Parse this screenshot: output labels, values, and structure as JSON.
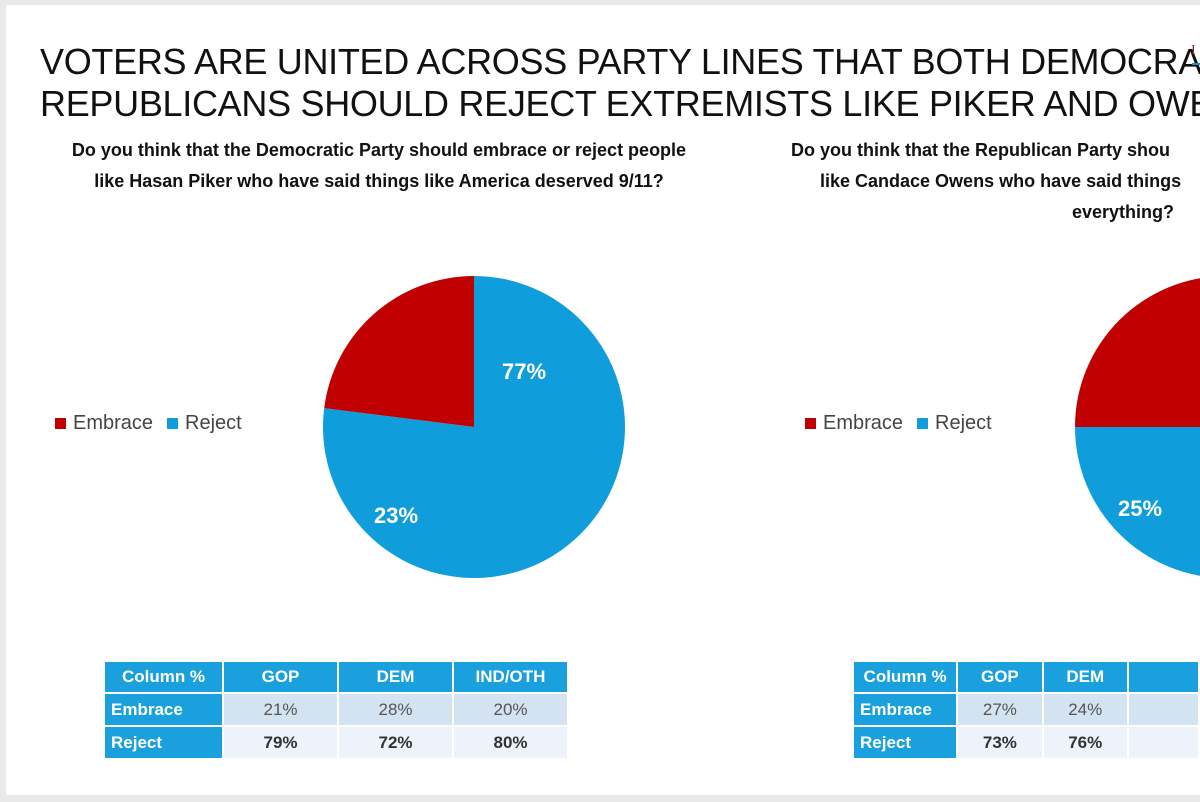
{
  "title": {
    "line1": "VOTERS ARE UNITED ACROSS PARTY LINES THAT BOTH DEMOCRATS AND",
    "line2": "REPUBLICANS SHOULD REJECT EXTREMISTS LIKE PIKER AND OWENS"
  },
  "colors": {
    "embrace": "#c00000",
    "reject": "#0f9ddb",
    "table_header": "#1aa0dd"
  },
  "left_panel": {
    "question_line1": "Do you think that the Democratic Party should embrace or reject people",
    "question_line2": "like Hasan Piker who have said things like America deserved 9/11?",
    "legend": {
      "embrace": "Embrace",
      "reject": "Reject"
    },
    "table": {
      "header": [
        "Column %",
        "GOP",
        "DEM",
        "IND/OTH"
      ],
      "rows": [
        {
          "label": "Embrace",
          "values": [
            "21%",
            "28%",
            "20%"
          ]
        },
        {
          "label": "Reject",
          "values": [
            "79%",
            "72%",
            "80%"
          ]
        }
      ]
    }
  },
  "right_panel": {
    "question_line1": "Do you think that the Republican Party shou",
    "question_line2": "like Candace Owens who have said things",
    "question_line3": "everything?",
    "legend": {
      "embrace": "Embrace",
      "reject": "Reject"
    },
    "table": {
      "header": [
        "Column %",
        "GOP",
        "DEM"
      ],
      "rows": [
        {
          "label": "Embrace",
          "values": [
            "27%",
            "24%"
          ]
        },
        {
          "label": "Reject",
          "values": [
            "73%",
            "76%"
          ]
        }
      ]
    }
  },
  "chart_data": [
    {
      "type": "pie",
      "title": "Do you think that the Democratic Party should embrace or reject people like Hasan Piker who have said things like America deserved 9/11?",
      "categories": [
        "Embrace",
        "Reject"
      ],
      "values": [
        23,
        77
      ],
      "labels": [
        "23%",
        "77%"
      ],
      "legend": "left"
    },
    {
      "type": "pie",
      "title": "Do you think that the Republican Party shou like Candace Owens who have said things everything?",
      "categories": [
        "Embrace",
        "Reject"
      ],
      "values": [
        25,
        75
      ],
      "labels": [
        "25%",
        ""
      ],
      "legend": "left"
    }
  ]
}
